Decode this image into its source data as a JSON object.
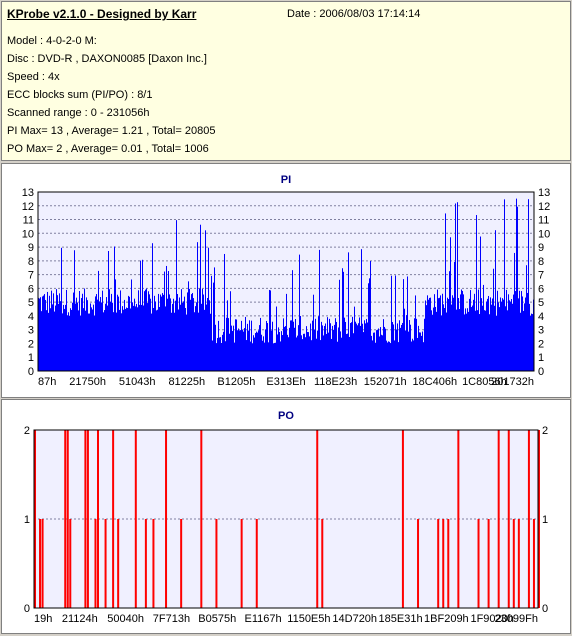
{
  "info": {
    "title": "KProbe v2.1.0 - Designed by Karr",
    "date": "Date : 2006/08/03 17:14:14",
    "lines": [
      "Model : 4-0-2-0 M:",
      "Disc : DVD-R , DAXON0085 [Daxon Inc.]",
      "Speed : 4x",
      "ECC blocks sum (PI/PO) : 8/1",
      "Scanned range : 0 - 231056h",
      "PI Max= 13 , Average= 1.21 , Total= 20805",
      "PO Max= 2 , Average= 0.01 , Total= 1006"
    ]
  },
  "colors": {
    "pi": "#0000ff",
    "po": "#ff0000",
    "plot_bg": "#f0f0ff",
    "grid": "#8080a0"
  },
  "chart_data": [
    {
      "type": "bar",
      "title": "PI",
      "ylim": [
        0,
        13
      ],
      "yticks": [
        0,
        1,
        2,
        3,
        4,
        5,
        6,
        7,
        8,
        9,
        10,
        11,
        12,
        13
      ],
      "xtick_labels": [
        "87h",
        "21750h",
        "51043h",
        "81225h",
        "B1205h",
        "E313Eh",
        "118E23h",
        "152071h",
        "18C406h",
        "1C8056h",
        "201732h"
      ],
      "grid": true,
      "series": [
        {
          "segments": [
            {
              "x_frac": [
                0.0,
                0.35
              ],
              "baseline": [
                4,
                6
              ],
              "spikes": [
                6,
                11
              ]
            },
            {
              "x_frac": [
                0.35,
                0.78
              ],
              "baseline": [
                2,
                4
              ],
              "spikes": [
                4,
                9
              ]
            },
            {
              "x_frac": [
                0.78,
                1.0
              ],
              "baseline": [
                4,
                6
              ],
              "spikes": [
                6,
                13
              ]
            }
          ]
        }
      ]
    },
    {
      "type": "bar",
      "title": "PO",
      "ylim": [
        0,
        2
      ],
      "yticks": [
        0,
        1,
        2
      ],
      "xtick_labels": [
        "19h",
        "21124h",
        "50040h",
        "7F713h",
        "B0575h",
        "E1167h",
        "1150E5h",
        "14D720h",
        "185E31h",
        "1BF209h",
        "1F9020h",
        "23099Fh"
      ],
      "grid": true,
      "series": [
        {
          "spikes_x_frac": [
            0.0,
            0.01,
            0.015,
            0.06,
            0.065,
            0.07,
            0.1,
            0.105,
            0.12,
            0.125,
            0.14,
            0.155,
            0.165,
            0.2,
            0.22,
            0.235,
            0.26,
            0.29,
            0.33,
            0.36,
            0.41,
            0.44,
            0.56,
            0.57,
            0.73,
            0.76,
            0.8,
            0.81,
            0.82,
            0.84,
            0.88,
            0.9,
            0.92,
            0.94,
            0.95,
            0.96,
            0.98,
            0.99,
            1.0
          ],
          "spikes_value": [
            2,
            1,
            1,
            2,
            2,
            1,
            2,
            2,
            1,
            2,
            1,
            2,
            1,
            2,
            1,
            1,
            2,
            1,
            2,
            1,
            1,
            1,
            2,
            1,
            2,
            1,
            1,
            1,
            1,
            2,
            1,
            1,
            2,
            2,
            1,
            1,
            2,
            1,
            2
          ]
        }
      ]
    }
  ]
}
